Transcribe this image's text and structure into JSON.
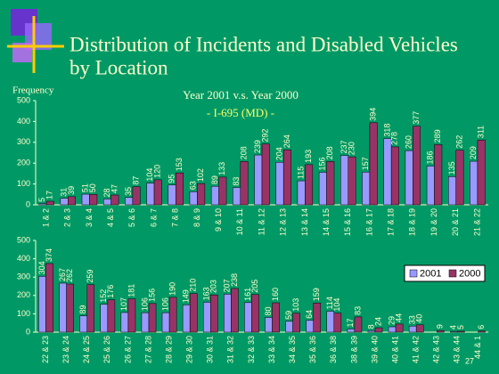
{
  "header": {
    "title_lines": [
      "Distribution of Incidents and Disabled Vehicles",
      "by Location"
    ]
  },
  "page_number": "27",
  "chart_data": [
    {
      "type": "bar",
      "title": "Year 2001 v.s. Year 2000",
      "subtitle": "- I-695 (MD) -",
      "y_label": "Frequency",
      "categories": [
        "1 & 2",
        "2 & 3",
        "3 & 4",
        "4 & 5",
        "5 & 6",
        "6 & 7",
        "7 & 8",
        "8 & 9",
        "9 & 10",
        "10 & 11",
        "11 & 12",
        "12 & 13",
        "13 & 14",
        "14 & 15",
        "15 & 16",
        "16 & 17",
        "17 & 18",
        "18 & 19",
        "19 & 20",
        "20 & 21",
        "21 & 22"
      ],
      "series": [
        {
          "color": "#9999ff",
          "values": [
            5,
            31,
            51,
            28,
            35,
            104,
            95,
            63,
            89,
            83,
            239,
            204,
            115,
            156,
            237,
            157,
            318,
            260,
            186,
            135,
            209
          ]
        },
        {
          "color": "#993366",
          "values": [
            17,
            39,
            50,
            47,
            87,
            120,
            153,
            102,
            133,
            208,
            292,
            264,
            193,
            208,
            230,
            394,
            278,
            377,
            289,
            262,
            311
          ]
        }
      ],
      "ylim": [
        0,
        500
      ],
      "yticks": [
        0,
        100,
        200,
        300,
        400,
        500
      ]
    },
    {
      "type": "bar",
      "categories": [
        "22 & 23",
        "23 & 24",
        "24 & 25",
        "25 & 26",
        "26 & 27",
        "27 & 28",
        "28 & 29",
        "29 & 30",
        "30 & 31",
        "31 & 32",
        "32 & 33",
        "33 & 34",
        "34 & 35",
        "35 & 36",
        "36 & 38",
        "38 & 39",
        "39 & 40",
        "40 & 41",
        "41 & 42",
        "42 & 43",
        "43 & 44",
        "44 & 1"
      ],
      "series": [
        {
          "name": "2001",
          "color": "#9999ff",
          "values": [
            304,
            267,
            89,
            152,
            107,
            106,
            106,
            149,
            163,
            207,
            161,
            80,
            59,
            64,
            114,
            17,
            8,
            29,
            33,
            0,
            4,
            0
          ]
        },
        {
          "name": "2000",
          "color": "#993366",
          "values": [
            374,
            262,
            259,
            176,
            181,
            156,
            190,
            210,
            203,
            238,
            205,
            160,
            103,
            159,
            104,
            83,
            24,
            44,
            40,
            9,
            5,
            6
          ]
        }
      ],
      "ylim": [
        0,
        500
      ],
      "yticks": [
        0,
        100,
        200,
        300,
        400,
        500
      ],
      "legend": "upper right"
    }
  ]
}
